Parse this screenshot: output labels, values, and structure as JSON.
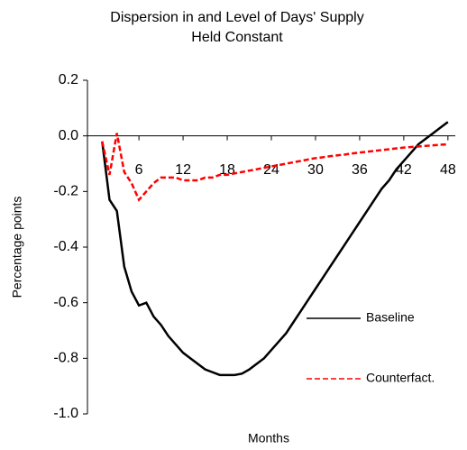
{
  "chart_data": {
    "type": "line",
    "title": [
      "Dispersion in and Level of Days' Supply",
      "Held Constant"
    ],
    "xlabel": "Months",
    "ylabel": "Percentage points",
    "x": [
      1,
      2,
      3,
      4,
      5,
      6,
      7,
      8,
      9,
      10,
      11,
      12,
      13,
      14,
      15,
      16,
      17,
      18,
      19,
      20,
      21,
      22,
      23,
      24,
      25,
      26,
      27,
      28,
      29,
      30,
      31,
      32,
      33,
      34,
      35,
      36,
      37,
      38,
      39,
      40,
      41,
      42,
      43,
      44,
      45,
      46,
      47,
      48
    ],
    "series": [
      {
        "name": "Baseline",
        "color": "#000000",
        "dash": "none",
        "values": [
          -0.02,
          -0.23,
          -0.27,
          -0.47,
          -0.56,
          -0.61,
          -0.6,
          -0.65,
          -0.68,
          -0.72,
          -0.75,
          -0.78,
          -0.8,
          -0.82,
          -0.84,
          -0.85,
          -0.86,
          -0.86,
          -0.86,
          -0.855,
          -0.84,
          -0.82,
          -0.8,
          -0.77,
          -0.74,
          -0.71,
          -0.67,
          -0.63,
          -0.59,
          -0.55,
          -0.51,
          -0.47,
          -0.43,
          -0.39,
          -0.35,
          -0.31,
          -0.27,
          -0.23,
          -0.19,
          -0.16,
          -0.12,
          -0.09,
          -0.06,
          -0.03,
          -0.01,
          0.01,
          0.03,
          0.05
        ]
      },
      {
        "name": "Counterfact.",
        "color": "#ff0000",
        "dash": "6,3",
        "values": [
          -0.02,
          -0.14,
          0.01,
          -0.13,
          -0.17,
          -0.23,
          -0.2,
          -0.17,
          -0.15,
          -0.15,
          -0.15,
          -0.16,
          -0.16,
          -0.16,
          -0.15,
          -0.15,
          -0.14,
          -0.14,
          -0.135,
          -0.13,
          -0.125,
          -0.12,
          -0.115,
          -0.11,
          -0.105,
          -0.1,
          -0.095,
          -0.09,
          -0.085,
          -0.08,
          -0.077,
          -0.073,
          -0.07,
          -0.067,
          -0.063,
          -0.06,
          -0.057,
          -0.054,
          -0.051,
          -0.048,
          -0.045,
          -0.042,
          -0.04,
          -0.038,
          -0.036,
          -0.034,
          -0.032,
          -0.03
        ]
      }
    ],
    "xlim": [
      -1,
      49
    ],
    "xticks": [
      6,
      12,
      18,
      24,
      30,
      36,
      42,
      48
    ],
    "ylim": [
      -1.0,
      0.2
    ],
    "yticks": [
      0.2,
      {
        "value": 0,
        "label": "0.0"
      },
      -0.2,
      -0.4,
      -0.6,
      -0.8,
      {
        "value": -1.0,
        "label": "-1.0"
      }
    ]
  }
}
